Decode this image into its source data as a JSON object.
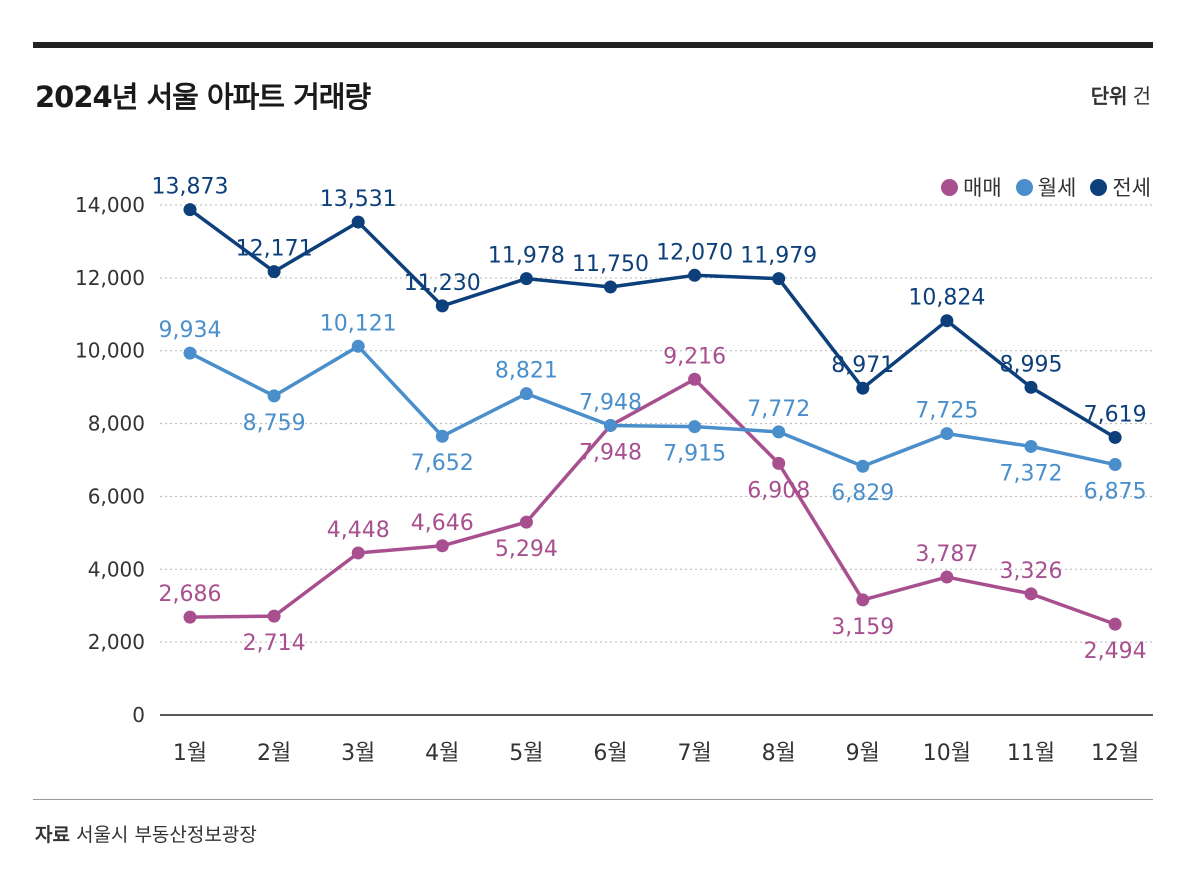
{
  "header": {
    "title": "2024년 서울 아파트 거래량",
    "unit_label": "단위",
    "unit_value": "건"
  },
  "footer": {
    "source_label": "자료",
    "source_value": "서울시 부동산정보광장"
  },
  "colors": {
    "매매": "#a8508f",
    "월세": "#4a8fcb",
    "전세": "#0d3f7a",
    "grid": "#b5b5b5",
    "axis": "#222222",
    "text": "#333333"
  },
  "chart_data": {
    "type": "line",
    "title": "2024년 서울 아파트 거래량",
    "xlabel": "",
    "ylabel": "",
    "unit": "건",
    "categories": [
      "1월",
      "2월",
      "3월",
      "4월",
      "5월",
      "6월",
      "7월",
      "8월",
      "9월",
      "10월",
      "11월",
      "12월"
    ],
    "ylim": [
      0,
      14000
    ],
    "yticks": [
      0,
      2000,
      4000,
      6000,
      8000,
      10000,
      12000,
      14000
    ],
    "ytick_labels": [
      "0",
      "2,000",
      "4,000",
      "6,000",
      "8,000",
      "10,000",
      "12,000",
      "14,000"
    ],
    "grid": true,
    "legend_position": "top-right",
    "series": [
      {
        "name": "매매",
        "color": "#a8508f",
        "values": [
          2686,
          2714,
          4448,
          4646,
          5294,
          7948,
          9216,
          6908,
          3159,
          3787,
          3326,
          2494
        ],
        "labels": [
          "2,686",
          "2,714",
          "4,448",
          "4,646",
          "5,294",
          "7,948",
          "9,216",
          "6,908",
          "3,159",
          "3,787",
          "3,326",
          "2,494"
        ]
      },
      {
        "name": "월세",
        "color": "#4a8fcb",
        "values": [
          9934,
          8759,
          10121,
          7652,
          8821,
          7948,
          7915,
          7772,
          6829,
          7725,
          7372,
          6875
        ],
        "labels": [
          "9,934",
          "8,759",
          "10,121",
          "7,652",
          "8,821",
          "7,948",
          "7,915",
          "7,772",
          "6,829",
          "7,725",
          "7,372",
          "6,875"
        ]
      },
      {
        "name": "전세",
        "color": "#0d3f7a",
        "values": [
          13873,
          12171,
          13531,
          11230,
          11978,
          11750,
          12070,
          11979,
          8971,
          10824,
          8995,
          7619
        ],
        "labels": [
          "13,873",
          "12,171",
          "13,531",
          "11,230",
          "11,978",
          "11,750",
          "12,070",
          "11,979",
          "8,971",
          "10,824",
          "8,995",
          "7,619"
        ]
      }
    ]
  }
}
